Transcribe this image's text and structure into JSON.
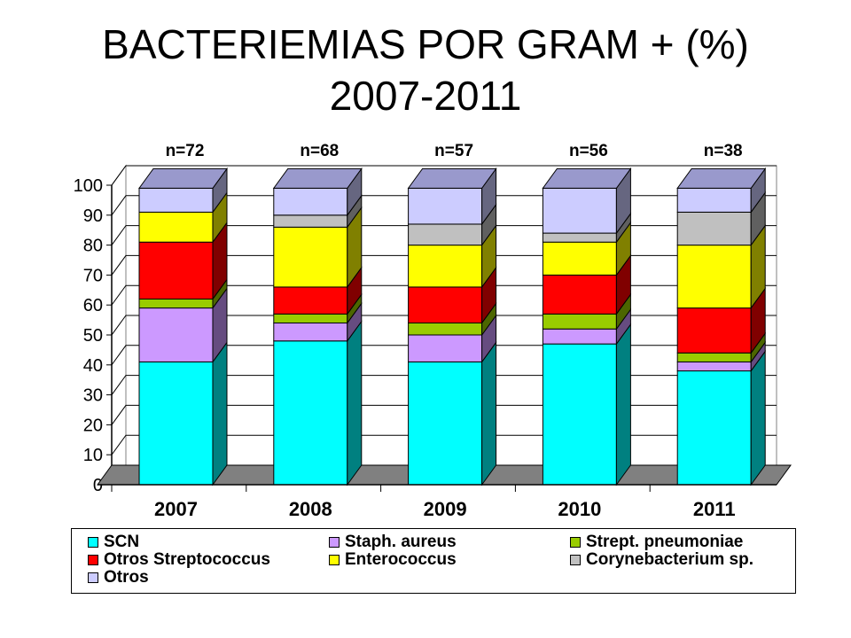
{
  "title": "BACTERIEMIAS POR GRAM + (%)",
  "subtitle": "2007-2011",
  "chart_data": {
    "type": "bar",
    "stacked": true,
    "three_d": true,
    "categories": [
      "2007",
      "2008",
      "2009",
      "2010",
      "2011"
    ],
    "annotations": [
      "n=72",
      "n=68",
      "n=57",
      "n=56",
      "n=38"
    ],
    "yticks": [
      0,
      10,
      20,
      30,
      40,
      50,
      60,
      70,
      80,
      90,
      100
    ],
    "ylim": [
      0,
      100
    ],
    "grid": true,
    "legend_position": "bottom",
    "series": [
      {
        "name": "SCN",
        "color": "#00FFFF",
        "side": "#008080",
        "values": [
          41,
          48,
          41,
          47,
          38
        ]
      },
      {
        "name": "Staph. aureus",
        "color": "#CC99FF",
        "side": "#664C80",
        "values": [
          18,
          6,
          9,
          5,
          3
        ]
      },
      {
        "name": "Strept. pneumoniae",
        "color": "#99CC00",
        "side": "#4C6600",
        "values": [
          3,
          3,
          4,
          5,
          3
        ]
      },
      {
        "name": "Otros Streptococcus",
        "color": "#FF0000",
        "side": "#800000",
        "values": [
          19,
          9,
          12,
          13,
          15
        ]
      },
      {
        "name": "Enterococcus",
        "color": "#FFFF00",
        "side": "#808000",
        "values": [
          10,
          20,
          14,
          11,
          21
        ]
      },
      {
        "name": "Corynebacterium sp.",
        "color": "#C0C0C0",
        "side": "#606060",
        "values": [
          0,
          4,
          7,
          3,
          11
        ]
      },
      {
        "name": "Otros",
        "color": "#CCCCFF",
        "side": "#666680",
        "values": [
          8,
          9,
          12,
          15,
          8
        ]
      }
    ]
  }
}
